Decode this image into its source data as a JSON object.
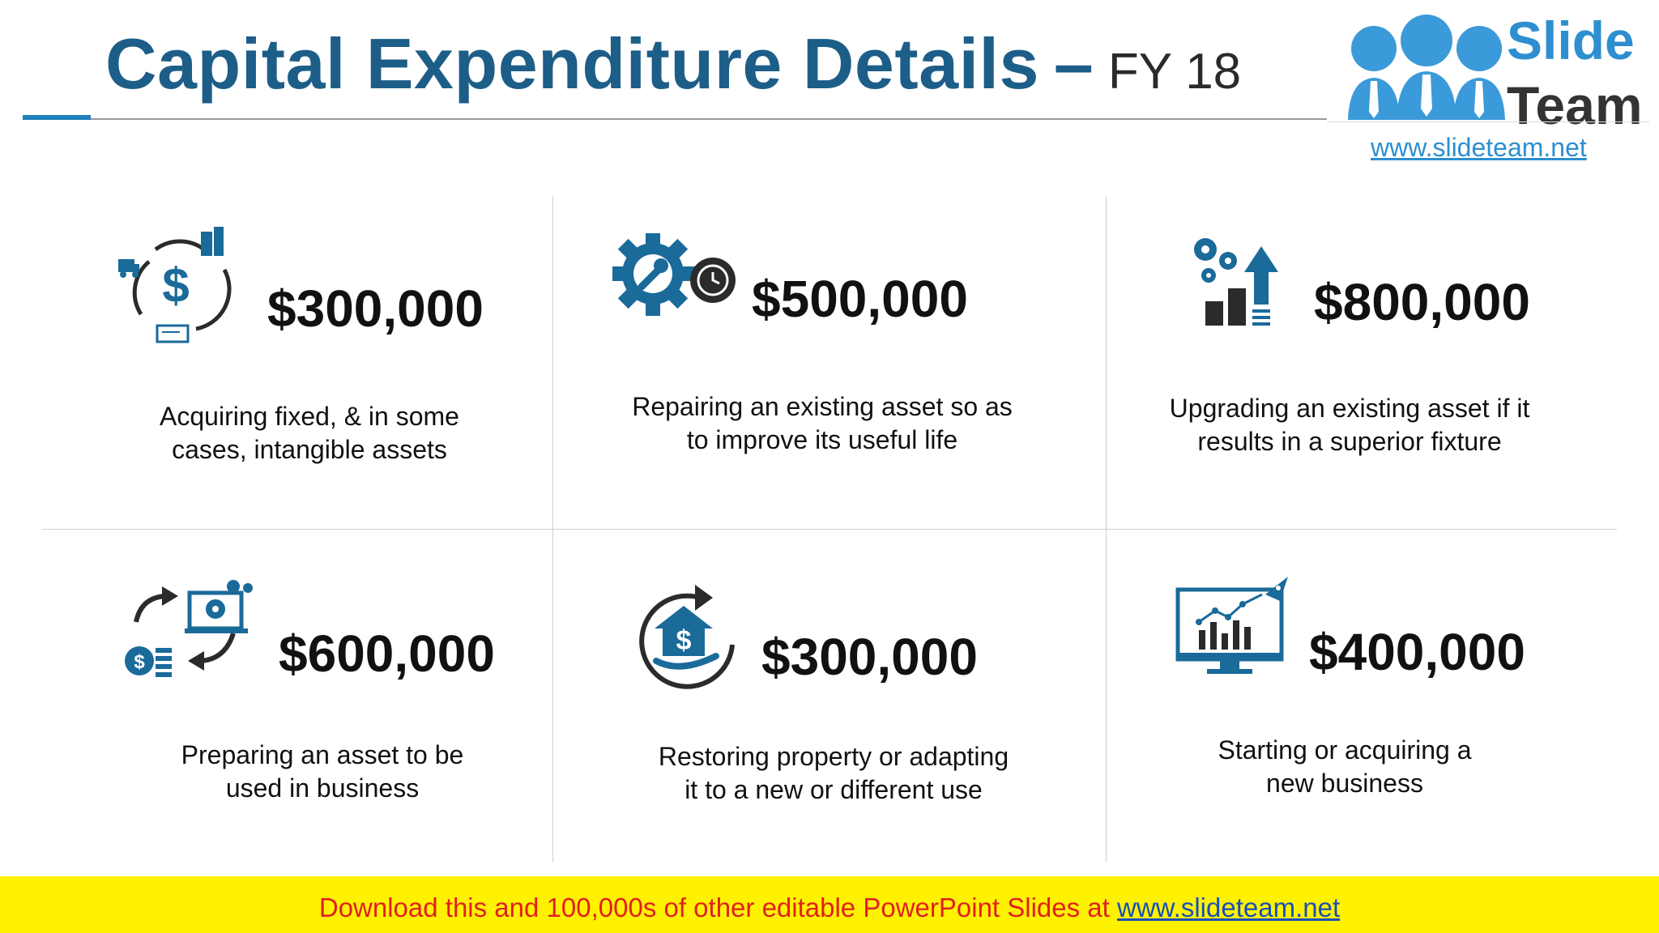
{
  "header": {
    "title": "Capital Expenditure Details",
    "dash": "–",
    "subtitle": "FY 18"
  },
  "logo": {
    "word1": "Slide",
    "word2": "Team",
    "url": "www.slideteam.net"
  },
  "cards": [
    {
      "amount": "$300,000",
      "line1": "Acquiring fixed, & in some",
      "line2": "cases, intangible assets",
      "icon": "dollar-cycle-icon"
    },
    {
      "amount": "$500,000",
      "line1": "Repairing an existing asset so as",
      "line2": "to improve its useful life",
      "icon": "gear-wrench-icon"
    },
    {
      "amount": "$800,000",
      "line1": "Upgrading an existing asset if it",
      "line2": "results in a superior fixture",
      "icon": "growth-chart-icon"
    },
    {
      "amount": "$600,000",
      "line1": "Preparing an asset to be",
      "line2": "used in business",
      "icon": "asset-exchange-icon"
    },
    {
      "amount": "$300,000",
      "line1": "Restoring property or adapting",
      "line2": "it to a new or different use",
      "icon": "house-restore-icon"
    },
    {
      "amount": "$400,000",
      "line1": "Starting or acquiring a",
      "line2": "new business",
      "icon": "monitor-rocket-icon"
    }
  ],
  "colors": {
    "accent": "#1d5e88",
    "icon_blue": "#1a6a9a",
    "icon_dark": "#2b2b2b",
    "footer_bg": "#fff200",
    "footer_text": "#e02020"
  },
  "footer": {
    "text": "Download this and 100,000s of other editable PowerPoint Slides at ",
    "link": "www.slideteam.net"
  }
}
